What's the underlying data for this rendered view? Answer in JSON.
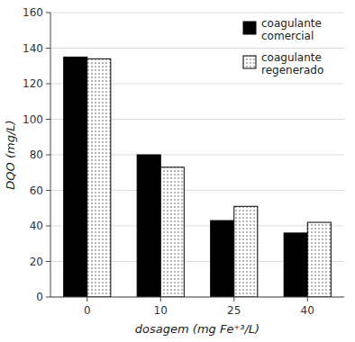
{
  "chart_data": {
    "type": "bar",
    "categories": [
      "0",
      "10",
      "25",
      "40"
    ],
    "series": [
      {
        "name": "coagulante\ncomercial",
        "color": "#000000",
        "values": [
          135,
          80,
          43,
          36
        ]
      },
      {
        "name": "coagulante\nregenerado",
        "color": "#ffffff",
        "values": [
          134,
          73,
          51,
          42
        ]
      }
    ],
    "xlabel": "dosagem (mg Fe⁺³/L)",
    "ylabel": "DQO (mg/L)",
    "ylim": [
      0,
      160
    ],
    "yticks": [
      0,
      20,
      40,
      60,
      80,
      100,
      120,
      140,
      160
    ],
    "grid": true,
    "legend": "upper right"
  }
}
